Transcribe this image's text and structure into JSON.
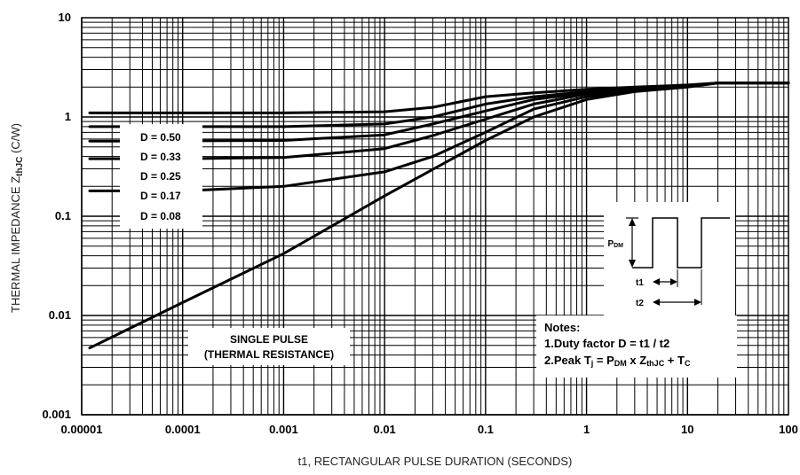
{
  "chart_data": {
    "type": "line",
    "x_scale": "log",
    "y_scale": "log",
    "xlim": [
      1e-05,
      100
    ],
    "ylim": [
      0.001,
      10
    ],
    "grid": true,
    "xlabel": "t1, RECTANGULAR PULSE DURATION (SECONDS)",
    "ylabel_main": "THERMAL IMPEDANCE Z",
    "ylabel_sub": "thJC",
    "ylabel_tail": " (C/W)",
    "x_tick_labels": [
      "0.00001",
      "0.0001",
      "0.001",
      "0.01",
      "0.1",
      "1",
      "10",
      "100"
    ],
    "y_tick_labels": [
      "0.001",
      "0.01",
      "0.1",
      "1",
      "10"
    ],
    "series": [
      {
        "name": "D = 0.50",
        "x": [
          1.2e-05,
          0.001,
          0.01,
          0.03,
          0.1,
          0.3,
          1,
          3,
          10,
          20,
          100
        ],
        "y": [
          1.1,
          1.1,
          1.13,
          1.25,
          1.6,
          1.75,
          1.9,
          2.0,
          2.1,
          2.2,
          2.2
        ]
      },
      {
        "name": "D = 0.33",
        "x": [
          1.2e-05,
          0.001,
          0.01,
          0.03,
          0.1,
          0.3,
          1,
          3,
          10,
          20,
          100
        ],
        "y": [
          0.8,
          0.8,
          0.85,
          1.0,
          1.35,
          1.6,
          1.8,
          1.95,
          2.08,
          2.2,
          2.2
        ]
      },
      {
        "name": "D = 0.25",
        "x": [
          1.2e-05,
          0.001,
          0.01,
          0.03,
          0.1,
          0.3,
          1,
          3,
          10,
          20,
          100
        ],
        "y": [
          0.57,
          0.58,
          0.66,
          0.85,
          1.15,
          1.5,
          1.75,
          1.92,
          2.05,
          2.2,
          2.2
        ]
      },
      {
        "name": "D = 0.17",
        "x": [
          1.2e-05,
          0.0001,
          0.001,
          0.01,
          0.03,
          0.1,
          0.3,
          1,
          3,
          10,
          20,
          100
        ],
        "y": [
          0.38,
          0.38,
          0.39,
          0.48,
          0.65,
          0.95,
          1.35,
          1.7,
          1.9,
          2.05,
          2.2,
          2.2
        ]
      },
      {
        "name": "D = 0.08",
        "x": [
          1.2e-05,
          0.0001,
          0.001,
          0.01,
          0.03,
          0.1,
          0.3,
          1,
          3,
          10,
          20,
          100
        ],
        "y": [
          0.18,
          0.18,
          0.2,
          0.28,
          0.4,
          0.7,
          1.2,
          1.6,
          1.85,
          2.02,
          2.2,
          2.2
        ]
      },
      {
        "name": "SINGLE PULSE",
        "x": [
          1.2e-05,
          0.0001,
          0.001,
          0.01,
          0.1,
          0.3,
          1,
          3,
          10,
          20,
          100
        ],
        "y": [
          0.0047,
          0.0135,
          0.042,
          0.16,
          0.58,
          1.0,
          1.5,
          1.8,
          2.0,
          2.2,
          2.2
        ]
      }
    ],
    "legend_labels": [
      "D = 0.50",
      "D = 0.33",
      "D = 0.25",
      "D = 0.17",
      "D = 0.08"
    ],
    "annotation": [
      "SINGLE PULSE",
      "(THERMAL RESISTANCE)"
    ],
    "notes": {
      "title": "Notes:",
      "line1": "1.Duty factor  D = t1 / t2",
      "line2_prefix": "2.Peak  T",
      "line2_sub1": "j",
      "line2_mid1": " = P",
      "line2_sub2": "DM",
      "line2_mid2": " x Z",
      "line2_sub3": "thJC",
      "line2_mid3": " + T",
      "line2_sub4": "C"
    },
    "waveform": {
      "pdm_main": "P",
      "pdm_sub": "DM",
      "t1": "t1",
      "t2": "t2"
    }
  }
}
